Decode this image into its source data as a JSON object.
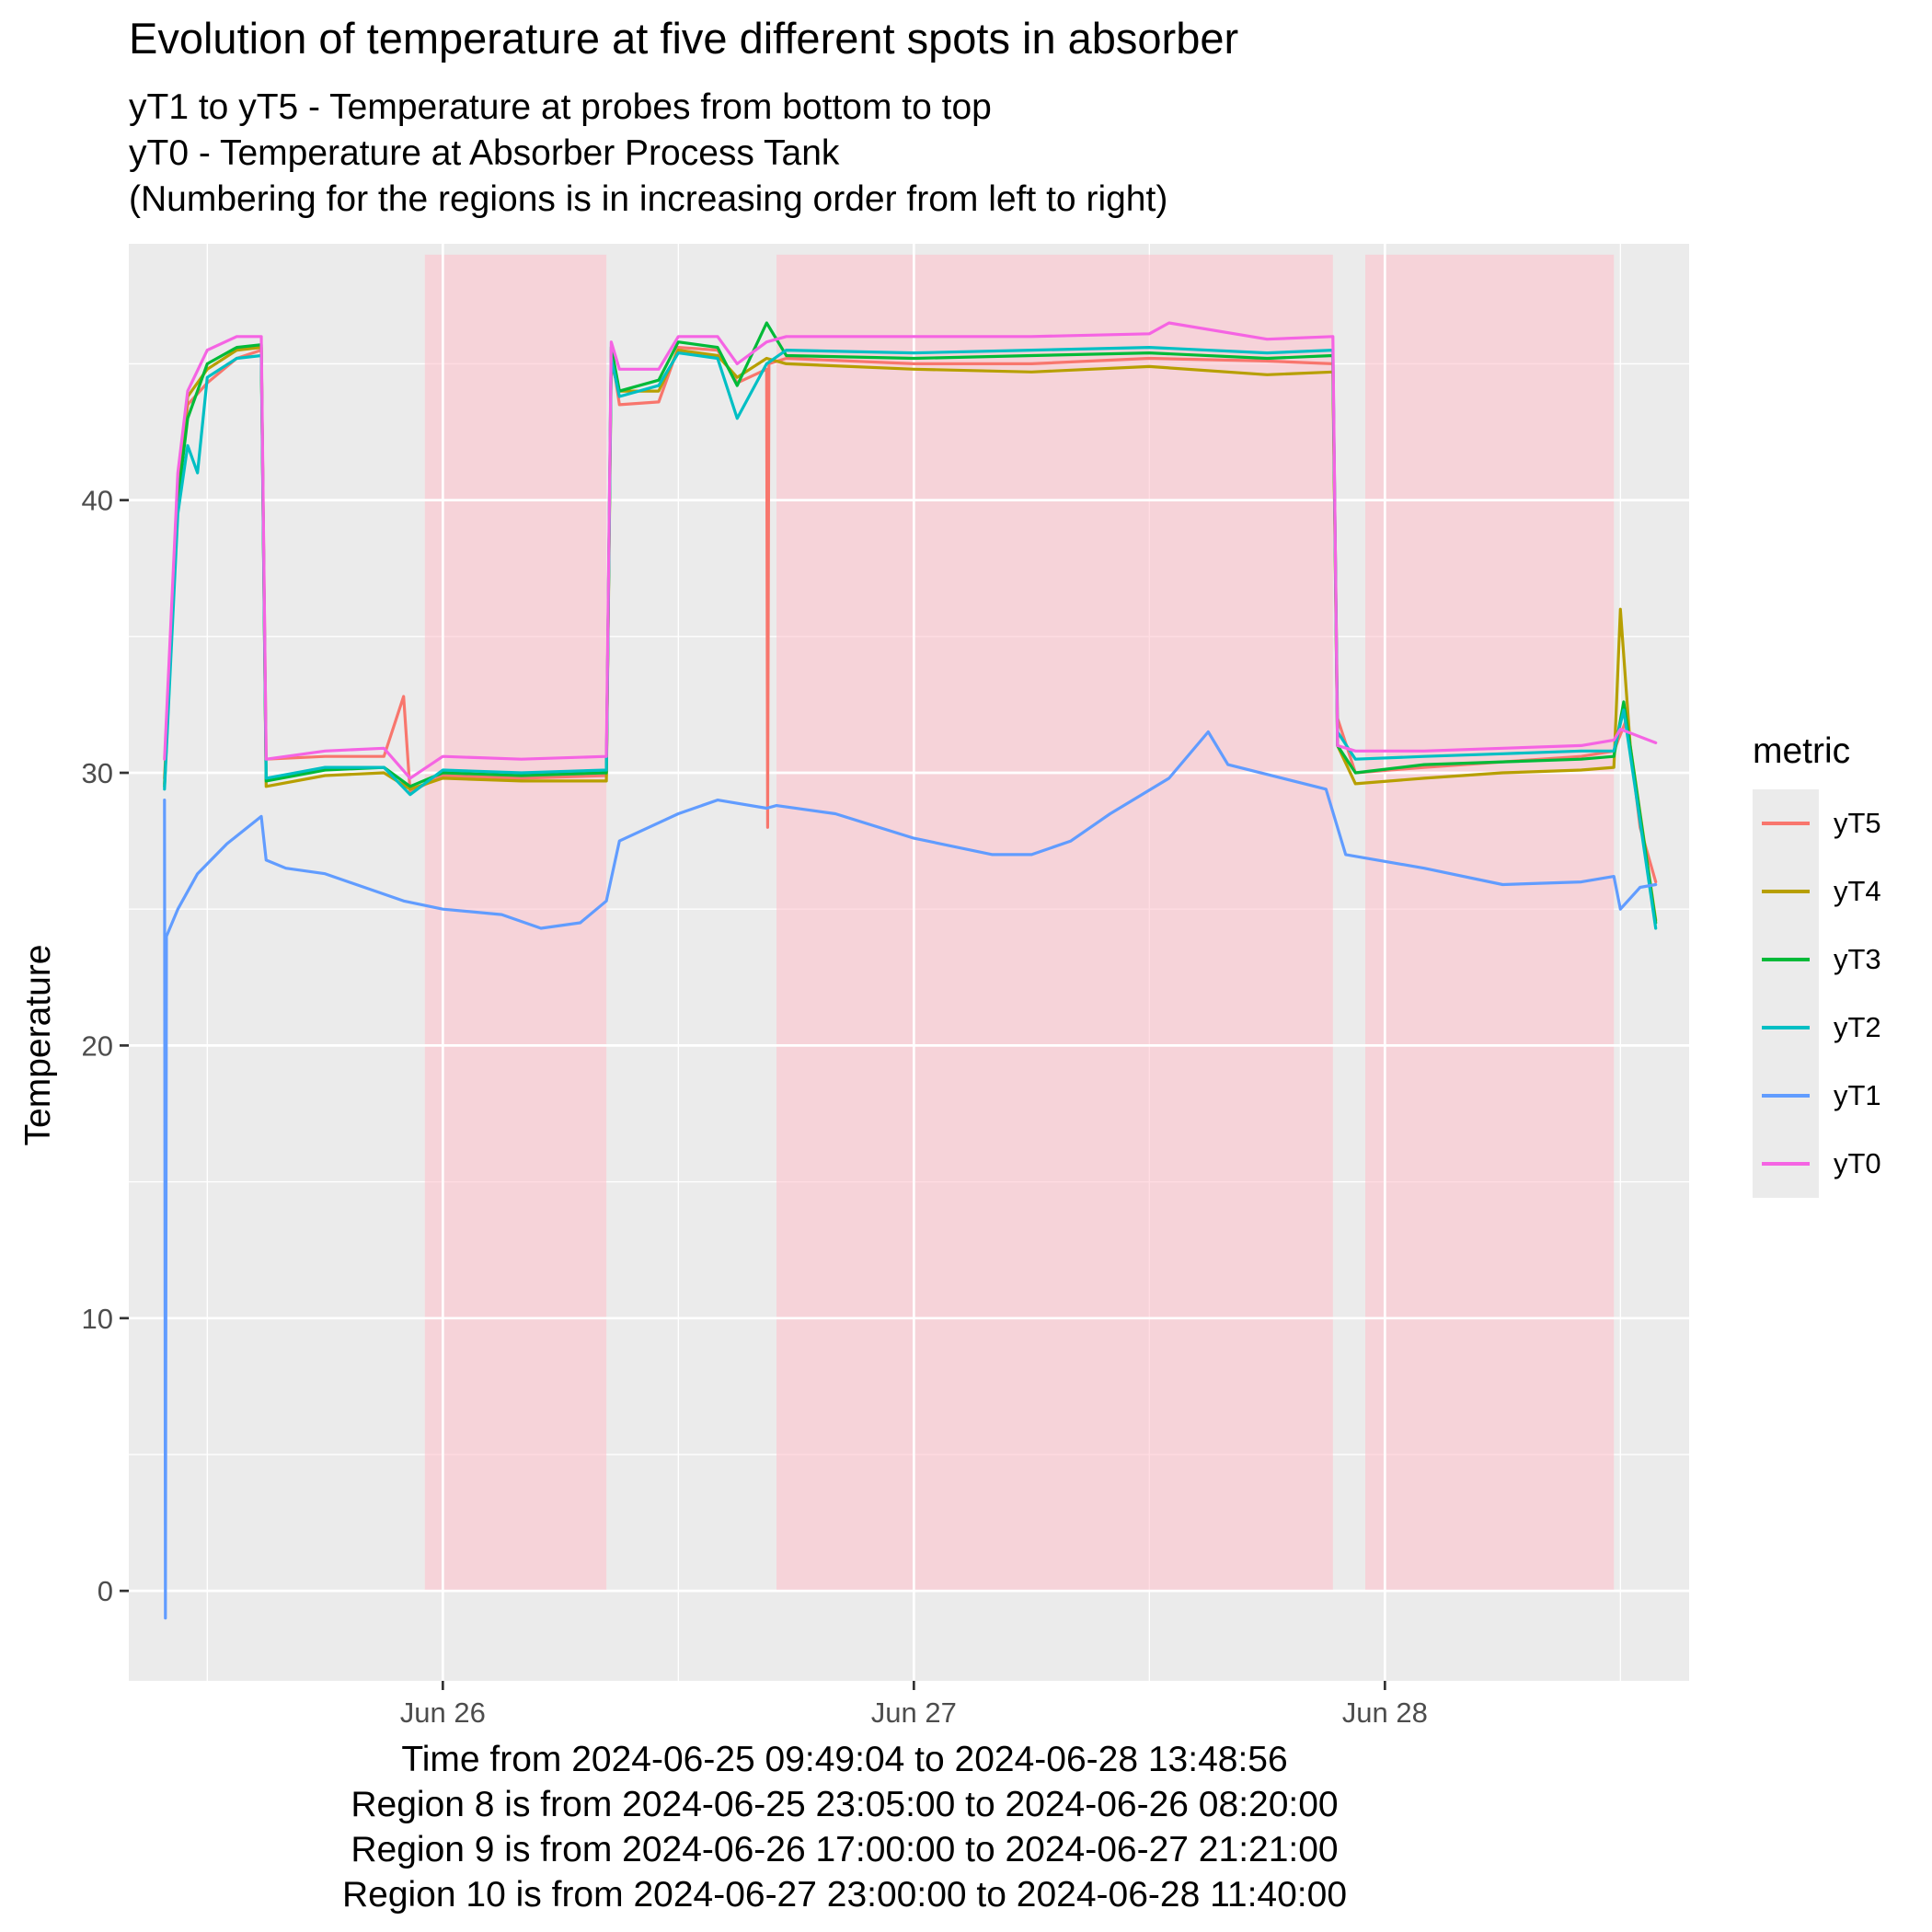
{
  "chart_data": {
    "type": "line",
    "title": "Evolution of temperature at five different spots in absorber",
    "subtitle": [
      "yT1 to yT5 - Temperature at probes from bottom to top",
      "yT0 - Temperature at Absorber Process Tank",
      "(Numbering for the regions is in increasing order from left to right)"
    ],
    "ylabel": "Temperature",
    "xlabel_lines": [
      "Time from 2024-06-25 09:49:04 to 2024-06-28 13:48:56",
      "Region 8 is from 2024-06-25 23:05:00 to 2024-06-26 08:20:00",
      "Region 9 is from 2024-06-26 17:00:00 to 2024-06-27 21:21:00",
      "Region 10 is from 2024-06-27 23:00:00 to 2024-06-28 11:40:00"
    ],
    "legend_title": "metric",
    "legend_position": "right",
    "grid": true,
    "xlim": [
      "2024-06-25 08:00",
      "2024-06-28 15:30"
    ],
    "ylim": [
      -3.3,
      49.4
    ],
    "x_ticks": [
      {
        "t": "2024-06-26 00:00",
        "label": "Jun 26"
      },
      {
        "t": "2024-06-27 00:00",
        "label": "Jun 27"
      },
      {
        "t": "2024-06-28 00:00",
        "label": "Jun 28"
      }
    ],
    "x_minor_ticks": [
      "2024-06-25 12:00",
      "2024-06-26 12:00",
      "2024-06-27 12:00",
      "2024-06-28 12:00"
    ],
    "y_ticks": [
      0,
      10,
      20,
      30,
      40
    ],
    "y_minor_ticks": [
      5,
      15,
      25,
      35,
      45
    ],
    "regions": [
      {
        "name": "Region 8",
        "start": "2024-06-25 23:05",
        "end": "2024-06-26 08:20",
        "color": "#ffc0cb"
      },
      {
        "name": "Region 9",
        "start": "2024-06-26 17:00",
        "end": "2024-06-27 21:21",
        "color": "#ffc0cb"
      },
      {
        "name": "Region 10",
        "start": "2024-06-27 23:00",
        "end": "2024-06-28 11:40",
        "color": "#ffc0cb"
      }
    ],
    "series": [
      {
        "name": "yT5",
        "color": "#F8766D",
        "points": [
          [
            "2024-06-25 09:49",
            29.8
          ],
          [
            "2024-06-25 10:30",
            40.0
          ],
          [
            "2024-06-25 11:00",
            43.5
          ],
          [
            "2024-06-25 12:00",
            44.3
          ],
          [
            "2024-06-25 13:30",
            45.2
          ],
          [
            "2024-06-25 14:45",
            45.5
          ],
          [
            "2024-06-25 15:00",
            30.5
          ],
          [
            "2024-06-25 18:00",
            30.6
          ],
          [
            "2024-06-25 21:00",
            30.6
          ],
          [
            "2024-06-25 22:00",
            32.8
          ],
          [
            "2024-06-25 22:20",
            29.3
          ],
          [
            "2024-06-26 00:00",
            29.9
          ],
          [
            "2024-06-26 04:00",
            29.8
          ],
          [
            "2024-06-26 08:20",
            29.9
          ],
          [
            "2024-06-26 08:35",
            45.5
          ],
          [
            "2024-06-26 09:00",
            43.5
          ],
          [
            "2024-06-26 11:00",
            43.6
          ],
          [
            "2024-06-26 12:00",
            45.6
          ],
          [
            "2024-06-26 14:00",
            45.5
          ],
          [
            "2024-06-26 15:00",
            44.3
          ],
          [
            "2024-06-26 16:30",
            44.8
          ],
          [
            "2024-06-26 16:33",
            28.0
          ],
          [
            "2024-06-26 16:37",
            45.0
          ],
          [
            "2024-06-26 17:30",
            45.2
          ],
          [
            "2024-06-27 00:00",
            45.0
          ],
          [
            "2024-06-27 06:00",
            45.0
          ],
          [
            "2024-06-27 12:00",
            45.2
          ],
          [
            "2024-06-27 18:00",
            45.1
          ],
          [
            "2024-06-27 21:21",
            45.0
          ],
          [
            "2024-06-27 21:35",
            32.0
          ],
          [
            "2024-06-27 22:30",
            30.0
          ],
          [
            "2024-06-28 02:00",
            30.2
          ],
          [
            "2024-06-28 06:00",
            30.4
          ],
          [
            "2024-06-28 10:00",
            30.6
          ],
          [
            "2024-06-28 11:40",
            30.8
          ],
          [
            "2024-06-28 12:20",
            32.0
          ],
          [
            "2024-06-28 13:00",
            28.0
          ],
          [
            "2024-06-28 13:48",
            26.0
          ]
        ]
      },
      {
        "name": "yT4",
        "color": "#B79F00",
        "points": [
          [
            "2024-06-25 09:49",
            29.6
          ],
          [
            "2024-06-25 10:30",
            40.5
          ],
          [
            "2024-06-25 11:00",
            43.8
          ],
          [
            "2024-06-25 12:00",
            44.8
          ],
          [
            "2024-06-25 13:30",
            45.5
          ],
          [
            "2024-06-25 14:45",
            45.6
          ],
          [
            "2024-06-25 15:00",
            29.5
          ],
          [
            "2024-06-25 18:00",
            29.9
          ],
          [
            "2024-06-25 21:00",
            30.0
          ],
          [
            "2024-06-25 22:20",
            29.4
          ],
          [
            "2024-06-26 00:00",
            29.8
          ],
          [
            "2024-06-26 04:00",
            29.7
          ],
          [
            "2024-06-26 08:20",
            29.7
          ],
          [
            "2024-06-26 08:35",
            45.0
          ],
          [
            "2024-06-26 09:00",
            44.0
          ],
          [
            "2024-06-26 11:00",
            44.0
          ],
          [
            "2024-06-26 12:00",
            45.5
          ],
          [
            "2024-06-26 14:00",
            45.3
          ],
          [
            "2024-06-26 15:00",
            44.5
          ],
          [
            "2024-06-26 16:30",
            45.2
          ],
          [
            "2024-06-26 17:30",
            45.0
          ],
          [
            "2024-06-27 00:00",
            44.8
          ],
          [
            "2024-06-27 06:00",
            44.7
          ],
          [
            "2024-06-27 12:00",
            44.9
          ],
          [
            "2024-06-27 18:00",
            44.6
          ],
          [
            "2024-06-27 21:21",
            44.7
          ],
          [
            "2024-06-27 21:35",
            31.0
          ],
          [
            "2024-06-27 22:30",
            29.6
          ],
          [
            "2024-06-28 02:00",
            29.8
          ],
          [
            "2024-06-28 06:00",
            30.0
          ],
          [
            "2024-06-28 10:00",
            30.1
          ],
          [
            "2024-06-28 11:40",
            30.2
          ],
          [
            "2024-06-28 12:00",
            36.0
          ],
          [
            "2024-06-28 12:30",
            31.0
          ],
          [
            "2024-06-28 13:48",
            24.6
          ]
        ]
      },
      {
        "name": "yT3",
        "color": "#00BA38",
        "points": [
          [
            "2024-06-25 09:49",
            29.5
          ],
          [
            "2024-06-25 10:30",
            40.0
          ],
          [
            "2024-06-25 11:00",
            43.0
          ],
          [
            "2024-06-25 12:00",
            45.0
          ],
          [
            "2024-06-25 13:30",
            45.6
          ],
          [
            "2024-06-25 14:45",
            45.7
          ],
          [
            "2024-06-25 15:00",
            29.7
          ],
          [
            "2024-06-25 18:00",
            30.1
          ],
          [
            "2024-06-25 21:00",
            30.2
          ],
          [
            "2024-06-25 22:20",
            29.5
          ],
          [
            "2024-06-26 00:00",
            30.0
          ],
          [
            "2024-06-26 04:00",
            29.9
          ],
          [
            "2024-06-26 08:20",
            30.0
          ],
          [
            "2024-06-26 08:35",
            45.6
          ],
          [
            "2024-06-26 09:00",
            44.0
          ],
          [
            "2024-06-26 11:00",
            44.4
          ],
          [
            "2024-06-26 12:00",
            45.8
          ],
          [
            "2024-06-26 14:00",
            45.6
          ],
          [
            "2024-06-26 15:00",
            44.2
          ],
          [
            "2024-06-26 16:30",
            46.5
          ],
          [
            "2024-06-26 17:30",
            45.3
          ],
          [
            "2024-06-27 00:00",
            45.2
          ],
          [
            "2024-06-27 06:00",
            45.3
          ],
          [
            "2024-06-27 12:00",
            45.4
          ],
          [
            "2024-06-27 18:00",
            45.2
          ],
          [
            "2024-06-27 21:21",
            45.3
          ],
          [
            "2024-06-27 21:35",
            31.0
          ],
          [
            "2024-06-27 22:30",
            30.0
          ],
          [
            "2024-06-28 02:00",
            30.3
          ],
          [
            "2024-06-28 06:00",
            30.4
          ],
          [
            "2024-06-28 10:00",
            30.5
          ],
          [
            "2024-06-28 11:40",
            30.6
          ],
          [
            "2024-06-28 12:10",
            32.6
          ],
          [
            "2024-06-28 13:48",
            24.5
          ]
        ]
      },
      {
        "name": "yT2",
        "color": "#00BFC4",
        "points": [
          [
            "2024-06-25 09:49",
            29.4
          ],
          [
            "2024-06-25 10:30",
            39.5
          ],
          [
            "2024-06-25 11:00",
            42.0
          ],
          [
            "2024-06-25 11:30",
            41.0
          ],
          [
            "2024-06-25 12:00",
            44.5
          ],
          [
            "2024-06-25 13:30",
            45.2
          ],
          [
            "2024-06-25 14:45",
            45.3
          ],
          [
            "2024-06-25 15:00",
            29.8
          ],
          [
            "2024-06-25 18:00",
            30.2
          ],
          [
            "2024-06-25 21:00",
            30.2
          ],
          [
            "2024-06-25 22:20",
            29.2
          ],
          [
            "2024-06-26 00:00",
            30.1
          ],
          [
            "2024-06-26 04:00",
            30.0
          ],
          [
            "2024-06-26 08:20",
            30.1
          ],
          [
            "2024-06-26 08:35",
            45.2
          ],
          [
            "2024-06-26 09:00",
            43.8
          ],
          [
            "2024-06-26 11:00",
            44.2
          ],
          [
            "2024-06-26 12:00",
            45.4
          ],
          [
            "2024-06-26 14:00",
            45.2
          ],
          [
            "2024-06-26 15:00",
            43.0
          ],
          [
            "2024-06-26 16:30",
            45.0
          ],
          [
            "2024-06-26 17:30",
            45.5
          ],
          [
            "2024-06-27 00:00",
            45.4
          ],
          [
            "2024-06-27 06:00",
            45.5
          ],
          [
            "2024-06-27 12:00",
            45.6
          ],
          [
            "2024-06-27 18:00",
            45.4
          ],
          [
            "2024-06-27 21:21",
            45.5
          ],
          [
            "2024-06-27 21:35",
            31.5
          ],
          [
            "2024-06-27 22:30",
            30.5
          ],
          [
            "2024-06-28 02:00",
            30.6
          ],
          [
            "2024-06-28 06:00",
            30.7
          ],
          [
            "2024-06-28 10:00",
            30.8
          ],
          [
            "2024-06-28 11:40",
            30.8
          ],
          [
            "2024-06-28 12:10",
            32.3
          ],
          [
            "2024-06-28 13:48",
            24.3
          ]
        ]
      },
      {
        "name": "yT1",
        "color": "#619CFF",
        "points": [
          [
            "2024-06-25 09:49",
            29.0
          ],
          [
            "2024-06-25 09:52",
            -1.0
          ],
          [
            "2024-06-25 09:55",
            24.0
          ],
          [
            "2024-06-25 10:30",
            25.0
          ],
          [
            "2024-06-25 11:30",
            26.3
          ],
          [
            "2024-06-25 13:00",
            27.4
          ],
          [
            "2024-06-25 14:45",
            28.4
          ],
          [
            "2024-06-25 15:00",
            26.8
          ],
          [
            "2024-06-25 16:00",
            26.5
          ],
          [
            "2024-06-25 18:00",
            26.3
          ],
          [
            "2024-06-25 22:00",
            25.3
          ],
          [
            "2024-06-26 00:00",
            25.0
          ],
          [
            "2024-06-26 03:00",
            24.8
          ],
          [
            "2024-06-26 05:00",
            24.3
          ],
          [
            "2024-06-26 07:00",
            24.5
          ],
          [
            "2024-06-26 08:20",
            25.3
          ],
          [
            "2024-06-26 09:00",
            27.5
          ],
          [
            "2024-06-26 12:00",
            28.5
          ],
          [
            "2024-06-26 14:00",
            29.0
          ],
          [
            "2024-06-26 16:30",
            28.7
          ],
          [
            "2024-06-26 17:00",
            28.8
          ],
          [
            "2024-06-26 20:00",
            28.5
          ],
          [
            "2024-06-27 00:00",
            27.6
          ],
          [
            "2024-06-27 04:00",
            27.0
          ],
          [
            "2024-06-27 06:00",
            27.0
          ],
          [
            "2024-06-27 08:00",
            27.5
          ],
          [
            "2024-06-27 10:00",
            28.5
          ],
          [
            "2024-06-27 13:00",
            29.8
          ],
          [
            "2024-06-27 15:00",
            31.5
          ],
          [
            "2024-06-27 16:00",
            30.3
          ],
          [
            "2024-06-27 21:00",
            29.4
          ],
          [
            "2024-06-27 22:00",
            27.0
          ],
          [
            "2024-06-28 02:00",
            26.5
          ],
          [
            "2024-06-28 06:00",
            25.9
          ],
          [
            "2024-06-28 10:00",
            26.0
          ],
          [
            "2024-06-28 11:40",
            26.2
          ],
          [
            "2024-06-28 12:00",
            25.0
          ],
          [
            "2024-06-28 13:00",
            25.8
          ],
          [
            "2024-06-28 13:48",
            25.9
          ]
        ]
      },
      {
        "name": "yT0",
        "color": "#F564E3",
        "points": [
          [
            "2024-06-25 09:49",
            30.5
          ],
          [
            "2024-06-25 10:30",
            41.0
          ],
          [
            "2024-06-25 11:00",
            44.0
          ],
          [
            "2024-06-25 12:00",
            45.5
          ],
          [
            "2024-06-25 13:30",
            46.0
          ],
          [
            "2024-06-25 14:45",
            46.0
          ],
          [
            "2024-06-25 15:00",
            30.5
          ],
          [
            "2024-06-25 18:00",
            30.8
          ],
          [
            "2024-06-25 21:00",
            30.9
          ],
          [
            "2024-06-25 22:20",
            29.8
          ],
          [
            "2024-06-26 00:00",
            30.6
          ],
          [
            "2024-06-26 04:00",
            30.5
          ],
          [
            "2024-06-26 08:20",
            30.6
          ],
          [
            "2024-06-26 08:35",
            45.8
          ],
          [
            "2024-06-26 09:00",
            44.8
          ],
          [
            "2024-06-26 11:00",
            44.8
          ],
          [
            "2024-06-26 12:00",
            46.0
          ],
          [
            "2024-06-26 14:00",
            46.0
          ],
          [
            "2024-06-26 15:00",
            45.0
          ],
          [
            "2024-06-26 16:30",
            45.8
          ],
          [
            "2024-06-26 17:30",
            46.0
          ],
          [
            "2024-06-27 00:00",
            46.0
          ],
          [
            "2024-06-27 06:00",
            46.0
          ],
          [
            "2024-06-27 12:00",
            46.1
          ],
          [
            "2024-06-27 13:00",
            46.5
          ],
          [
            "2024-06-27 18:00",
            45.9
          ],
          [
            "2024-06-27 21:21",
            46.0
          ],
          [
            "2024-06-27 21:35",
            31.0
          ],
          [
            "2024-06-27 22:30",
            30.8
          ],
          [
            "2024-06-28 02:00",
            30.8
          ],
          [
            "2024-06-28 06:00",
            30.9
          ],
          [
            "2024-06-28 10:00",
            31.0
          ],
          [
            "2024-06-28 11:40",
            31.2
          ],
          [
            "2024-06-28 12:00",
            31.6
          ],
          [
            "2024-06-28 13:48",
            31.1
          ]
        ]
      }
    ]
  }
}
